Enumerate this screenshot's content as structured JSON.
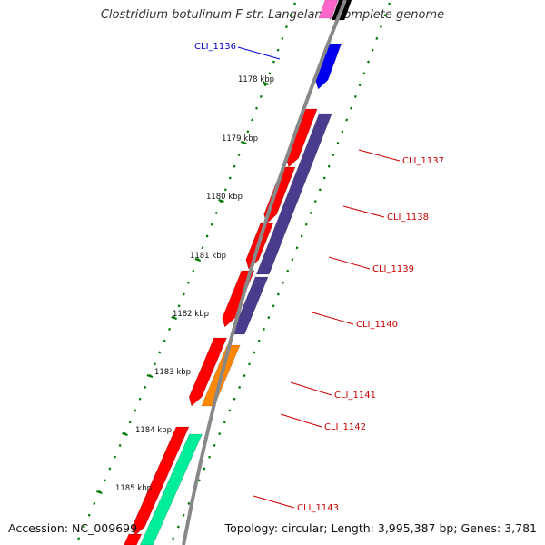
{
  "title": "Clostridium botulinum F str. Langeland, complete genome",
  "footer": {
    "accession": "Accession: NC_009699",
    "summary": "Topology: circular; Length: 3,995,387 bp; Genes: 3,781"
  },
  "kbp_ticks": [
    "1178 kbp",
    "1179 kbp",
    "1180 kbp",
    "1181 kbp",
    "1182 kbp",
    "1183 kbp",
    "1184 kbp",
    "1185 kbp"
  ],
  "gene_labels": [
    {
      "text": "CLI_1136",
      "color": "#0000cc"
    },
    {
      "text": "CLI_1137",
      "color": "#cc0000"
    },
    {
      "text": "CLI_1138",
      "color": "#cc0000"
    },
    {
      "text": "CLI_1139",
      "color": "#cc0000"
    },
    {
      "text": "CLI_1140",
      "color": "#cc0000"
    },
    {
      "text": "CLI_1141",
      "color": "#cc0000"
    },
    {
      "text": "CLI_1142",
      "color": "#cc0000"
    },
    {
      "text": "CLI_1143",
      "color": "#cc0000"
    }
  ],
  "colors": {
    "backbone": "#888888",
    "cds_forward": "#ff0000",
    "cds_reverse_blue": "#0000ee",
    "cog_purple": "#4b3b8c",
    "cog_orange": "#ff8800",
    "cog_green": "#00ee99",
    "cog_pink": "#ff66cc",
    "tick_green": "#007700"
  }
}
